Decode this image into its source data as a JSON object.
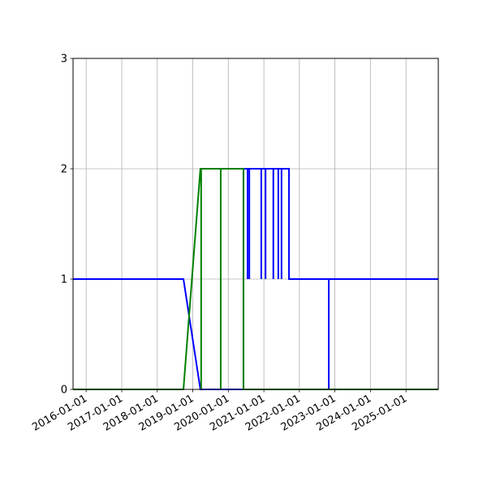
{
  "chart_data": {
    "type": "line",
    "title": "",
    "xlabel": "",
    "ylabel": "",
    "xlim": [
      "2015-08-19",
      "2025-11-29"
    ],
    "ylim": [
      0,
      3
    ],
    "grid": true,
    "x_ticks": [
      "2016-01-01",
      "2017-01-01",
      "2018-01-01",
      "2019-01-01",
      "2020-01-01",
      "2021-01-01",
      "2022-01-01",
      "2023-01-01",
      "2024-01-01",
      "2025-01-01"
    ],
    "y_ticks": [
      "0",
      "1",
      "2",
      "3"
    ],
    "series": [
      {
        "color": "#0000ff",
        "points": [
          [
            "2015-08-19",
            1
          ],
          [
            "2018-09-27",
            1
          ],
          [
            "2019-03-20",
            0
          ],
          [
            "2020-06-05",
            0
          ],
          [
            "2020-06-05",
            2
          ],
          [
            "2020-07-17",
            2
          ],
          [
            "2020-07-17",
            1
          ],
          [
            "2020-07-17",
            2
          ],
          [
            "2020-08-04",
            2
          ],
          [
            "2020-08-04",
            1
          ],
          [
            "2020-08-04",
            2
          ],
          [
            "2020-12-05",
            2
          ],
          [
            "2020-12-05",
            1
          ],
          [
            "2020-12-05",
            2
          ],
          [
            "2021-01-18",
            2
          ],
          [
            "2021-01-18",
            1
          ],
          [
            "2021-01-18",
            2
          ],
          [
            "2021-04-08",
            2
          ],
          [
            "2021-04-08",
            1
          ],
          [
            "2021-04-08",
            2
          ],
          [
            "2021-05-29",
            2
          ],
          [
            "2021-05-29",
            1
          ],
          [
            "2021-05-29",
            2
          ],
          [
            "2021-07-01",
            2
          ],
          [
            "2021-07-01",
            1
          ],
          [
            "2021-07-01",
            2
          ],
          [
            "2021-09-16",
            2
          ],
          [
            "2021-09-16",
            1
          ],
          [
            "2022-10-30",
            1
          ],
          [
            "2022-10-30",
            0
          ],
          [
            "2022-10-30",
            1
          ],
          [
            "2025-11-29",
            1
          ]
        ]
      },
      {
        "color": "#008000",
        "points": [
          [
            "2015-08-19",
            0
          ],
          [
            "2018-09-27",
            0
          ],
          [
            "2019-03-20",
            2
          ],
          [
            "2019-03-28",
            2
          ],
          [
            "2019-03-28",
            0
          ],
          [
            "2019-03-28",
            2
          ],
          [
            "2019-10-15",
            2
          ],
          [
            "2019-10-15",
            0
          ],
          [
            "2019-10-15",
            2
          ],
          [
            "2020-06-05",
            2
          ],
          [
            "2020-06-05",
            0
          ],
          [
            "2025-11-29",
            0
          ]
        ]
      }
    ]
  }
}
